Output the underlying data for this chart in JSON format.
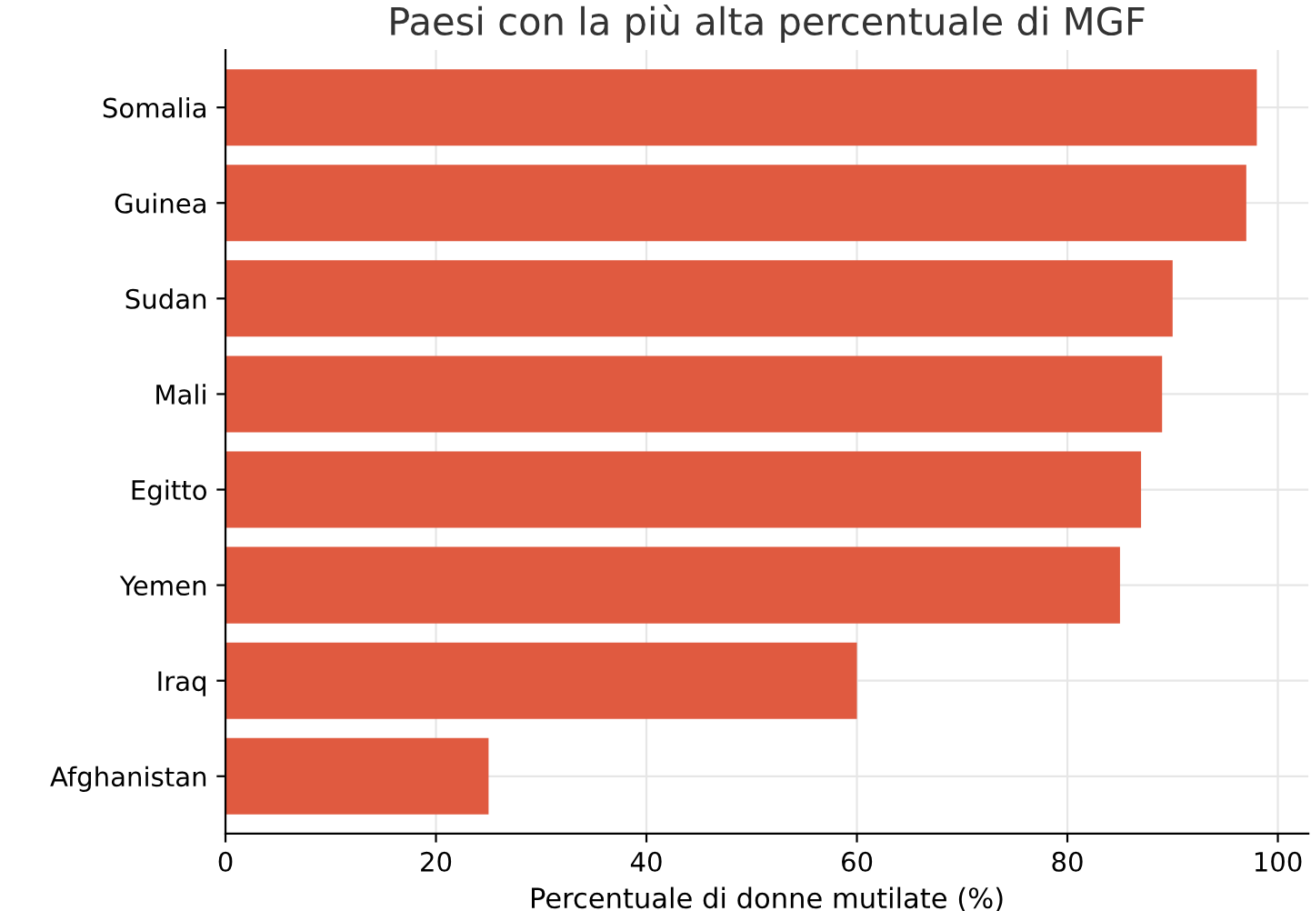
{
  "chart_data": {
    "type": "bar",
    "orientation": "horizontal",
    "title": "Paesi con la più alta percentuale di MGF",
    "xlabel": "Percentuale di donne mutilate (%)",
    "categories": [
      "Somalia",
      "Guinea",
      "Sudan",
      "Mali",
      "Egitto",
      "Yemen",
      "Iraq",
      "Afghanistan"
    ],
    "values": [
      98,
      97,
      90,
      89,
      87,
      85,
      60,
      25
    ],
    "color": "#e05a40",
    "xlim": [
      0,
      102.9
    ],
    "xticks": [
      0,
      20,
      40,
      60,
      80,
      100
    ],
    "grid": true
  }
}
